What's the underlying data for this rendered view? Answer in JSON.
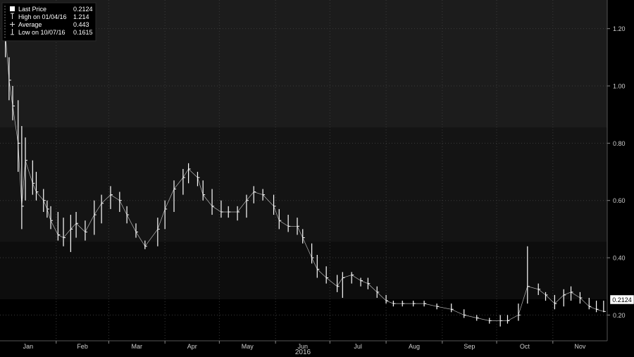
{
  "legend": {
    "items": [
      {
        "label": "Last Price",
        "value": "0.2124",
        "symbol": "square"
      },
      {
        "label": "High on 01/04/16",
        "value": "1.214",
        "symbol": "high-marker"
      },
      {
        "label": "Average",
        "value": "0.443",
        "symbol": "average-marker"
      },
      {
        "label": "Low on 10/07/16",
        "value": "0.1615",
        "symbol": "low-marker"
      }
    ]
  },
  "last_price_tag": "0.2124",
  "colors": {
    "background": "#000000",
    "band_light": "#1c1c1c",
    "band_mid": "#141414",
    "band_dark": "#0d0d0d",
    "price": "#ffffff",
    "axis_text": "#cfcfcf",
    "grid": "#3a3a3a",
    "accent": "#3a6fb0"
  },
  "chart_data": {
    "type": "line",
    "style": "ohlc-bars",
    "title": "",
    "xlabel": "2016",
    "ylabel": "",
    "ylim": [
      0.11,
      1.3
    ],
    "yticks": [
      "1.20",
      "1.00",
      "0.80",
      "0.60",
      "0.40",
      "0.20"
    ],
    "xticks": [
      "Jan",
      "Feb",
      "Mar",
      "Apr",
      "May",
      "Jun",
      "Jul",
      "Aug",
      "Sep",
      "Oct",
      "Nov"
    ],
    "grid": true,
    "legend_position": "top-left",
    "stats": {
      "last": 0.2124,
      "high": 1.214,
      "average": 0.443,
      "low": 0.1615
    },
    "series": [
      {
        "x": [
          "2016-01-04",
          "2016-01-06",
          "2016-01-08",
          "2016-01-11",
          "2016-01-13",
          "2016-01-15",
          "2016-01-19",
          "2016-01-21",
          "2016-01-25",
          "2016-01-27",
          "2016-01-29",
          "2016-02-02",
          "2016-02-05",
          "2016-02-09",
          "2016-02-12",
          "2016-02-17",
          "2016-02-22",
          "2016-02-26",
          "2016-03-02",
          "2016-03-07",
          "2016-03-11",
          "2016-03-16",
          "2016-03-21",
          "2016-03-28",
          "2016-04-01",
          "2016-04-06",
          "2016-04-11",
          "2016-04-14",
          "2016-04-19",
          "2016-04-22",
          "2016-04-27",
          "2016-05-02",
          "2016-05-06",
          "2016-05-11",
          "2016-05-16",
          "2016-05-20",
          "2016-05-25",
          "2016-05-31",
          "2016-06-03",
          "2016-06-08",
          "2016-06-13",
          "2016-06-16",
          "2016-06-21",
          "2016-06-24",
          "2016-06-29",
          "2016-07-05",
          "2016-07-08",
          "2016-07-13",
          "2016-07-18",
          "2016-07-22",
          "2016-07-27",
          "2016-08-01",
          "2016-08-05",
          "2016-08-10",
          "2016-08-16",
          "2016-08-22",
          "2016-08-29",
          "2016-09-06",
          "2016-09-13",
          "2016-09-20",
          "2016-09-27",
          "2016-10-03",
          "2016-10-07",
          "2016-10-13",
          "2016-10-18",
          "2016-10-24",
          "2016-10-28",
          "2016-11-02",
          "2016-11-07",
          "2016-11-11",
          "2016-11-16",
          "2016-11-21",
          "2016-11-25",
          "2016-11-29"
        ],
        "high": [
          1.214,
          1.1,
          1.0,
          0.95,
          0.86,
          0.82,
          0.74,
          0.7,
          0.64,
          0.6,
          0.58,
          0.56,
          0.54,
          0.55,
          0.56,
          0.53,
          0.6,
          0.62,
          0.65,
          0.63,
          0.58,
          0.52,
          0.46,
          0.54,
          0.6,
          0.67,
          0.71,
          0.73,
          0.7,
          0.67,
          0.64,
          0.6,
          0.58,
          0.58,
          0.62,
          0.65,
          0.64,
          0.62,
          0.57,
          0.55,
          0.54,
          0.5,
          0.45,
          0.41,
          0.37,
          0.34,
          0.35,
          0.35,
          0.33,
          0.33,
          0.3,
          0.27,
          0.25,
          0.25,
          0.25,
          0.25,
          0.24,
          0.24,
          0.22,
          0.2,
          0.19,
          0.2,
          0.2,
          0.24,
          0.44,
          0.31,
          0.28,
          0.27,
          0.29,
          0.3,
          0.28,
          0.26,
          0.25,
          0.25
        ],
        "low": [
          1.1,
          0.95,
          0.88,
          0.7,
          0.5,
          0.6,
          0.62,
          0.6,
          0.56,
          0.54,
          0.5,
          0.46,
          0.44,
          0.42,
          0.47,
          0.46,
          0.48,
          0.52,
          0.57,
          0.56,
          0.52,
          0.47,
          0.43,
          0.44,
          0.5,
          0.56,
          0.62,
          0.66,
          0.65,
          0.6,
          0.55,
          0.54,
          0.54,
          0.53,
          0.54,
          0.59,
          0.6,
          0.55,
          0.5,
          0.49,
          0.48,
          0.45,
          0.38,
          0.33,
          0.31,
          0.28,
          0.26,
          0.31,
          0.3,
          0.29,
          0.26,
          0.24,
          0.23,
          0.23,
          0.23,
          0.23,
          0.22,
          0.21,
          0.19,
          0.18,
          0.17,
          0.16,
          0.17,
          0.18,
          0.24,
          0.27,
          0.25,
          0.22,
          0.23,
          0.25,
          0.24,
          0.22,
          0.21,
          0.21
        ],
        "close": [
          1.18,
          1.02,
          0.93,
          0.8,
          0.58,
          0.74,
          0.66,
          0.63,
          0.6,
          0.57,
          0.53,
          0.48,
          0.47,
          0.5,
          0.52,
          0.49,
          0.55,
          0.59,
          0.62,
          0.6,
          0.55,
          0.49,
          0.44,
          0.5,
          0.57,
          0.64,
          0.68,
          0.71,
          0.68,
          0.62,
          0.58,
          0.56,
          0.56,
          0.56,
          0.6,
          0.63,
          0.62,
          0.58,
          0.53,
          0.51,
          0.51,
          0.47,
          0.4,
          0.36,
          0.33,
          0.3,
          0.33,
          0.34,
          0.32,
          0.31,
          0.28,
          0.25,
          0.24,
          0.24,
          0.24,
          0.24,
          0.23,
          0.22,
          0.2,
          0.19,
          0.18,
          0.18,
          0.18,
          0.2,
          0.3,
          0.29,
          0.27,
          0.24,
          0.27,
          0.28,
          0.26,
          0.23,
          0.22,
          0.2124
        ]
      }
    ]
  }
}
